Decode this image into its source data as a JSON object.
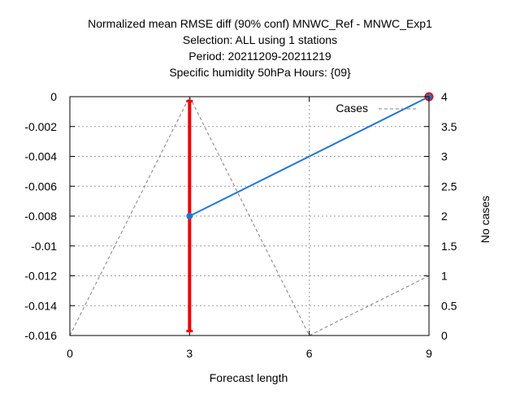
{
  "chart_data": {
    "type": "line",
    "title_lines": [
      "Normalized mean RMSE diff (90% conf) MNWC_Ref - MNWC_Exp1",
      "Selection: ALL using      1 stations",
      "Period: 20211209-20211219",
      "Specific humidity 50hPa   Hours: {09}"
    ],
    "xlabel": "Forecast length",
    "ylabel": "",
    "y2label": "No cases",
    "xlim": [
      0,
      9
    ],
    "ylim": [
      -0.016,
      0
    ],
    "y2lim": [
      0,
      4
    ],
    "xticks": [
      0,
      3,
      6,
      9
    ],
    "xtick_labels": [
      "0",
      "3",
      "6",
      "9"
    ],
    "yticks": [
      0,
      -0.002,
      -0.004,
      -0.006,
      -0.008,
      -0.01,
      -0.012,
      -0.014,
      -0.016
    ],
    "ytick_labels": [
      "0",
      "-0.002",
      "-0.004",
      "-0.006",
      "-0.008",
      "-0.01",
      "-0.012",
      "-0.014",
      "-0.016"
    ],
    "y2ticks": [
      0,
      0.5,
      1,
      1.5,
      2,
      2.5,
      3,
      3.5,
      4
    ],
    "y2tick_labels": [
      "0",
      "0.5",
      "1",
      "1.5",
      "2",
      "2.5",
      "3",
      "3.5",
      "4"
    ],
    "grid": true,
    "legend": {
      "label": "Cases",
      "position": "top-right"
    },
    "series": [
      {
        "x": [
          3,
          9
        ],
        "y": [
          -0.008,
          0
        ],
        "color": "#1f77d2",
        "axis": "left"
      },
      {
        "name": "Cases",
        "x": [
          0,
          3,
          6,
          9
        ],
        "y": [
          0,
          4,
          0,
          1
        ],
        "color": "#808080",
        "axis": "right",
        "style": "dashed"
      }
    ],
    "error_bars": [
      {
        "x": 3,
        "low": -0.0157,
        "high": -0.0003,
        "color": "#ee0000"
      }
    ],
    "markers": [
      {
        "x": 9,
        "y": 0,
        "color": "#dd1111",
        "axis": "left"
      }
    ]
  }
}
